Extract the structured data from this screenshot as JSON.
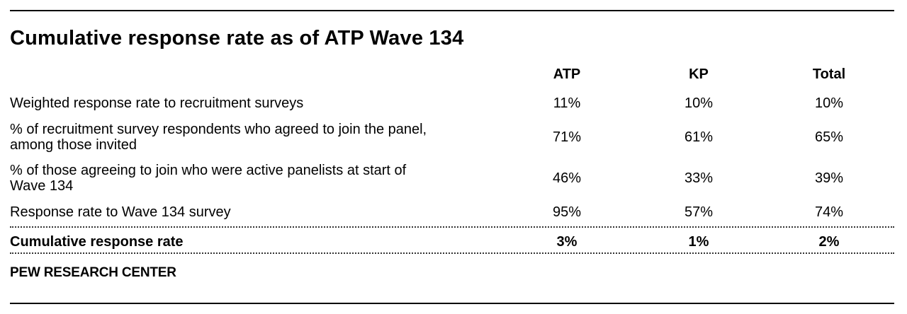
{
  "title": "Cumulative response rate as of ATP Wave 134",
  "columns": [
    "ATP",
    "KP",
    "Total"
  ],
  "rows": [
    {
      "label_lines": [
        "Weighted response rate to recruitment surveys"
      ],
      "values": [
        "11%",
        "10%",
        "10%"
      ]
    },
    {
      "label_lines": [
        "% of recruitment survey respondents who agreed to join the panel,",
        "among those invited"
      ],
      "values": [
        "71%",
        "61%",
        "65%"
      ]
    },
    {
      "label_lines": [
        "% of those agreeing to join who were active panelists at start of",
        "Wave 134"
      ],
      "values": [
        "46%",
        "33%",
        "39%"
      ]
    },
    {
      "label_lines": [
        "Response rate to Wave 134 survey"
      ],
      "values": [
        "95%",
        "57%",
        "74%"
      ]
    }
  ],
  "total_row": {
    "label": "Cumulative response rate",
    "values": [
      "3%",
      "1%",
      "2%"
    ]
  },
  "source": "PEW RESEARCH CENTER"
}
